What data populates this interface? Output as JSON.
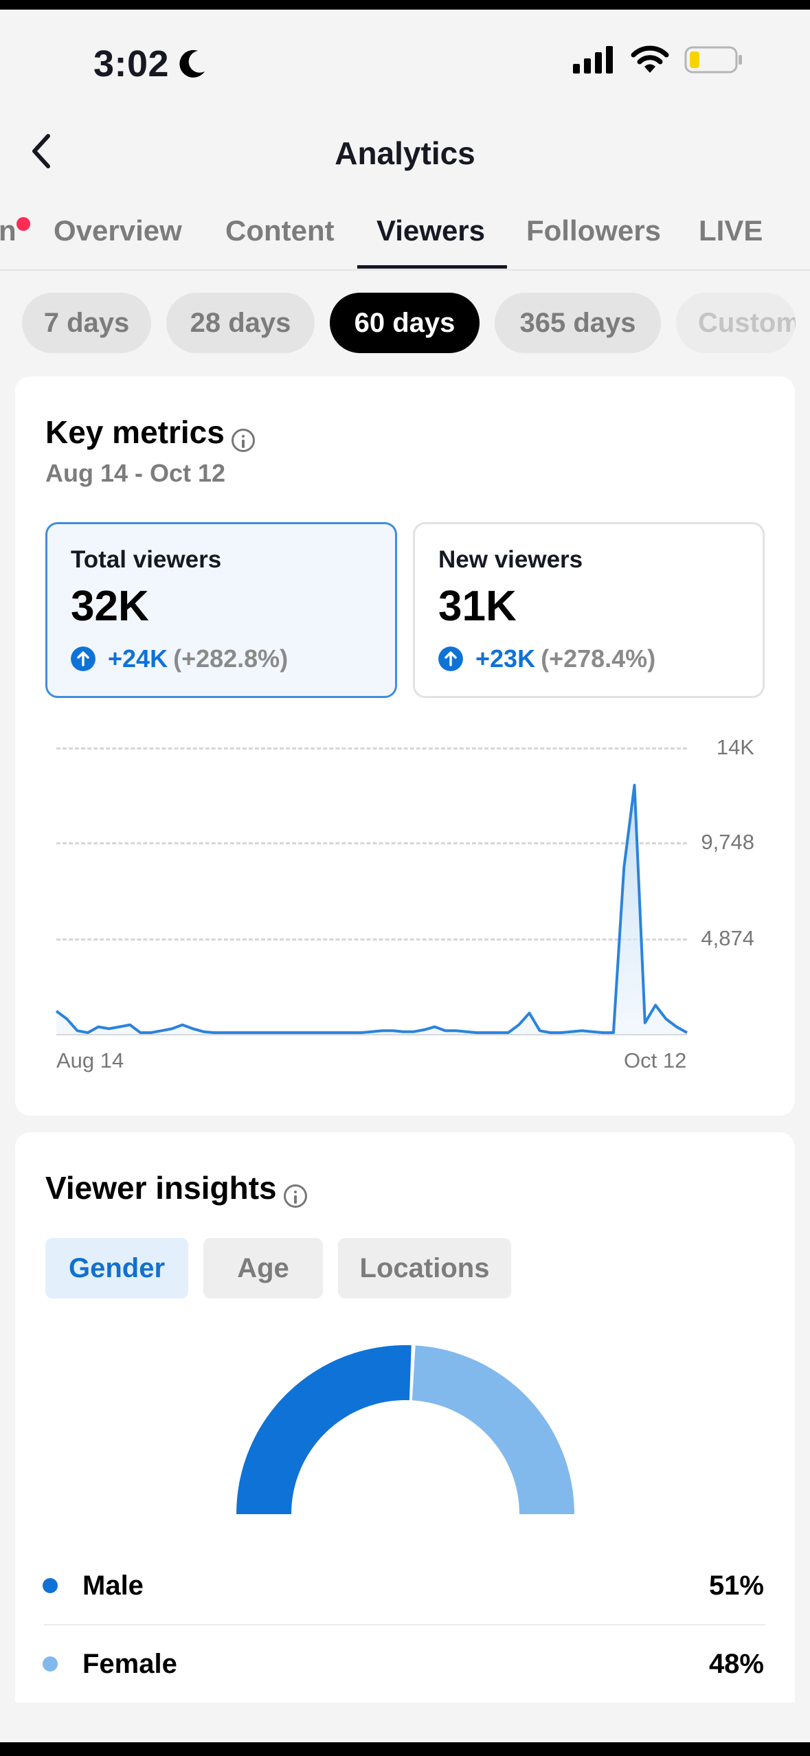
{
  "status_bar": {
    "time": "3:02"
  },
  "header": {
    "title": "Analytics"
  },
  "tabs": [
    {
      "label": "n"
    },
    {
      "label": "Overview"
    },
    {
      "label": "Content"
    },
    {
      "label": "Viewers"
    },
    {
      "label": "Followers"
    },
    {
      "label": "LIVE"
    }
  ],
  "ranges": [
    {
      "label": "7 days"
    },
    {
      "label": "28 days"
    },
    {
      "label": "60 days"
    },
    {
      "label": "365 days"
    },
    {
      "label": "Custom"
    }
  ],
  "key_metrics": {
    "title": "Key metrics",
    "date_range": "Aug 14 - Oct 12",
    "total": {
      "label": "Total viewers",
      "value": "32K",
      "change": "+24K",
      "pct": "(+282.8%)"
    },
    "new": {
      "label": "New viewers",
      "value": "31K",
      "change": "+23K",
      "pct": "(+278.4%)"
    }
  },
  "chart_data": {
    "type": "area",
    "x_start_label": "Aug 14",
    "x_end_label": "Oct 12",
    "y_ticks": [
      "14K",
      "9,748",
      "4,874"
    ],
    "ylim": [
      0,
      14622
    ],
    "values": [
      1200,
      800,
      200,
      100,
      400,
      300,
      400,
      500,
      100,
      100,
      200,
      300,
      500,
      300,
      150,
      100,
      100,
      100,
      100,
      100,
      100,
      100,
      100,
      100,
      100,
      100,
      100,
      100,
      100,
      100,
      150,
      200,
      200,
      150,
      150,
      250,
      400,
      200,
      200,
      150,
      100,
      100,
      100,
      100,
      500,
      1100,
      200,
      100,
      100,
      150,
      200,
      150,
      100,
      100,
      8500,
      12700,
      600,
      1500,
      800,
      400,
      100
    ],
    "grid": true
  },
  "insights": {
    "title": "Viewer insights",
    "tabs": [
      {
        "label": "Gender"
      },
      {
        "label": "Age"
      },
      {
        "label": "Locations"
      }
    ],
    "legend": [
      {
        "name": "Male",
        "value": "51%",
        "color": "#0f72d6"
      },
      {
        "name": "Female",
        "value": "48%",
        "color": "#81b9ec"
      }
    ],
    "donut_fractions": [
      0.51,
      0.48
    ]
  }
}
